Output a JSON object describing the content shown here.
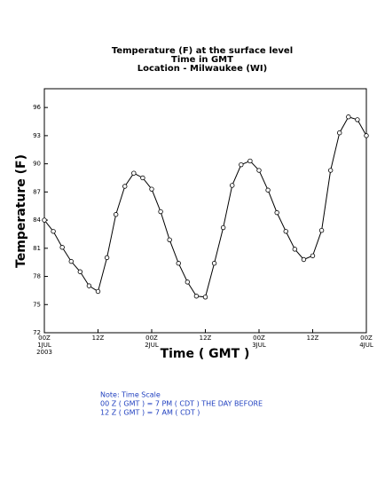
{
  "chart_data": {
    "type": "line",
    "title": [
      "Temperature (F) at the surface level",
      "Time in GMT",
      "Location - Milwaukee (WI)"
    ],
    "xlabel": "Time ( GMT )",
    "ylabel": "Temperature (F)",
    "categories": [
      [
        "00Z",
        "1JUL",
        "2003"
      ],
      null,
      null,
      null,
      null,
      null,
      [
        "12Z"
      ],
      null,
      null,
      null,
      null,
      null,
      [
        "00Z",
        "2JUL"
      ],
      null,
      null,
      null,
      null,
      null,
      [
        "12Z"
      ],
      null,
      null,
      null,
      null,
      null,
      [
        "00Z",
        "3JUL"
      ],
      null,
      null,
      null,
      null,
      null,
      [
        "12Z"
      ],
      null,
      null,
      null,
      null,
      null,
      [
        "00Z",
        "4JUL"
      ]
    ],
    "series": [
      {
        "name": "Temperature",
        "color": "#000000",
        "values": [
          84.0,
          82.8,
          81.1,
          79.6,
          78.5,
          77.0,
          76.4,
          80.0,
          84.6,
          87.6,
          89.0,
          88.5,
          87.3,
          84.9,
          81.9,
          79.4,
          77.4,
          75.9,
          75.8,
          79.4,
          83.2,
          87.7,
          89.9,
          90.3,
          89.3,
          87.2,
          84.8,
          82.8,
          80.9,
          79.8,
          80.2,
          82.9,
          89.3,
          93.3,
          95.0,
          94.7,
          93.0
        ]
      }
    ],
    "ylim": [
      72,
      98
    ],
    "yticks": [
      72,
      75,
      78,
      81,
      84,
      87,
      90,
      93,
      96
    ],
    "notes": [
      "Note: Time Scale",
      "00 Z ( GMT ) = 7 PM ( CDT ) THE DAY BEFORE",
      "12 Z ( GMT ) = 7 AM ( CDT )"
    ]
  }
}
